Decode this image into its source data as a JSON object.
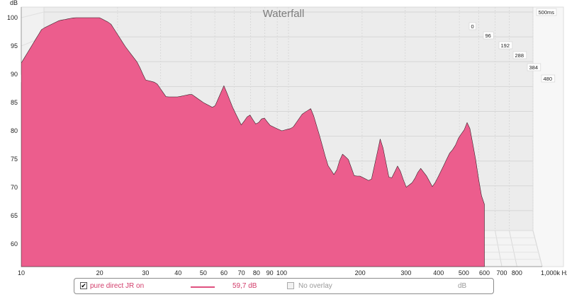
{
  "colors": {
    "trace": "#e0507f",
    "trace_fill": "#ec5d8d",
    "panel_back": "#ececec",
    "panel_floor": "#f4f4f4",
    "label_pink": "#d23c6a",
    "grey_text": "#9a9a9a"
  },
  "chart_data": {
    "type": "area",
    "title": "Waterfall",
    "ylabel": "dB",
    "ylim": [
      56,
      101
    ],
    "y_ticks": [
      "100",
      "95",
      "90",
      "85",
      "80",
      "75",
      "70",
      "65",
      "60"
    ],
    "xlim": [
      10,
      1000
    ],
    "x_scale": "log",
    "x_ticks": [
      "10",
      "20",
      "30",
      "40",
      "50",
      "60",
      "70",
      "80",
      "90",
      "100",
      "200",
      "300",
      "400",
      "500",
      "600",
      "700",
      "800",
      "1,000k Hz"
    ],
    "time_axis": {
      "end_label": "500ms",
      "ticks_right": [
        "0",
        "96",
        "192",
        "288",
        "384",
        "480"
      ],
      "ticks_left": [
        "288",
        "384",
        "480"
      ]
    },
    "series_first_slice": {
      "freq_hz": [
        10,
        12,
        14,
        16,
        18,
        20,
        22,
        25,
        28,
        30,
        33,
        36,
        40,
        45,
        50,
        55,
        60,
        65,
        70,
        75,
        80,
        85,
        90,
        100,
        110,
        120,
        130,
        140,
        150,
        160,
        170,
        180,
        190,
        200,
        220,
        240,
        260,
        280,
        300,
        320,
        340,
        360,
        380,
        400,
        420,
        440,
        460,
        480,
        500,
        520,
        540,
        560,
        580,
        600
      ],
      "level_db": [
        92,
        98,
        99.5,
        100,
        100,
        100,
        99,
        95,
        92,
        89,
        88.5,
        86,
        86,
        86.5,
        85,
        84,
        88,
        84,
        81,
        83,
        81,
        82.5,
        81,
        80,
        80.5,
        83,
        84,
        79,
        74,
        72,
        76,
        75,
        72,
        72,
        71,
        79,
        71,
        74,
        70,
        71,
        73.5,
        72,
        70,
        72,
        74,
        76,
        77,
        79,
        80,
        82,
        78,
        74,
        69,
        67
      ]
    }
  },
  "legend": {
    "checkbox_mark": "✔",
    "label": "pure direct JR on",
    "value": "59,7 dB",
    "overlay_label": "No overlay",
    "units": "dB"
  }
}
